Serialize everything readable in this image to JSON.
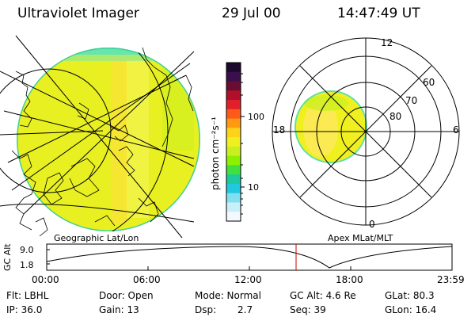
{
  "header": {
    "title": "Ultraviolet Imager",
    "date": "29 Jul 00",
    "time": "14:47:49 UT"
  },
  "colorbar": {
    "label": "photon cm⁻²s⁻¹",
    "ticks": [
      "100",
      "10"
    ],
    "colors": [
      "#1b0a2e",
      "#3b0f4d",
      "#6a0d32",
      "#b0102a",
      "#e0202a",
      "#ff5a1a",
      "#ff9a10",
      "#ffd21a",
      "#f0f020",
      "#c8f01e",
      "#8cf000",
      "#40e040",
      "#20c8a0",
      "#20c8e0",
      "#80e0f0",
      "#c8f0f8",
      "#f4f8ff"
    ]
  },
  "left_panel": {
    "caption": "Geographic Lat/Lon"
  },
  "polar_panel": {
    "caption": "Apex MLat/MLT",
    "mlt_labels": {
      "top": "12",
      "bottom": "0",
      "left": "18",
      "right": "6"
    },
    "lat_labels": [
      "60",
      "70",
      "80"
    ]
  },
  "altitude_plot": {
    "ylabel": "GC Alt",
    "yticks": [
      "9.0",
      "1.8"
    ],
    "xticks": [
      "00:00",
      "06:00",
      "12:00",
      "18:00",
      "23:59"
    ],
    "marker_color": "#cc0000"
  },
  "info": {
    "filter": "Flt: LBHL",
    "door": "Door: Open",
    "mode": "Mode: Normal",
    "gc_alt": "GC Alt: 4.6 Re",
    "glat": "GLat:  80.3",
    "ip": "IP: 36.0",
    "gain": "Gain: 13",
    "dsp_label": "Dsp:",
    "dsp_value": "2.7",
    "seq": "Seq: 39",
    "glon": "GLon:  16.4"
  }
}
